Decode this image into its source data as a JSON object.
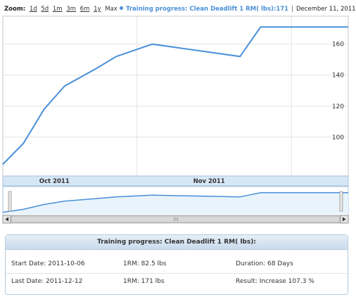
{
  "zoom": {
    "label": "Zoom:",
    "options": [
      "1d",
      "5d",
      "1m",
      "3m",
      "6m",
      "1y"
    ],
    "current": "Max"
  },
  "legend": {
    "series_name": "Training progress: Clean Deadlift 1 RM( lbs):",
    "series_value": "171",
    "date": "December 11, 2011"
  },
  "colors": {
    "line": "#4a90d9",
    "nav_fill": "#e8f3fb",
    "nav_band": "#d6e6f5"
  },
  "chart_data": {
    "type": "line",
    "x_axis": "dates",
    "series": [
      {
        "name": "Training progress: Clean Deadlift 1 RM( lbs):",
        "points": [
          {
            "date": "2011-10-06",
            "value": 82.5
          },
          {
            "date": "2011-10-10",
            "value": 96
          },
          {
            "date": "2011-10-14",
            "value": 118
          },
          {
            "date": "2011-10-18",
            "value": 133
          },
          {
            "date": "2011-10-24",
            "value": 144
          },
          {
            "date": "2011-10-28",
            "value": 152
          },
          {
            "date": "2011-11-04",
            "value": 160
          },
          {
            "date": "2011-11-21",
            "value": 152
          },
          {
            "date": "2011-11-25",
            "value": 171
          },
          {
            "date": "2011-12-12",
            "value": 171
          }
        ]
      }
    ],
    "x_ticks": [
      "Oct 2011",
      "Nov 2011"
    ],
    "y_ticks": [
      100,
      120,
      140,
      160
    ],
    "ylim": [
      75,
      178
    ],
    "grid": true,
    "legend_position": "top"
  },
  "summary": {
    "title": "Training progress: Clean Deadlift 1 RM( lbs):",
    "start_date": "Start Date: 2011-10-06",
    "start_1rm": "1RM: 82.5 lbs",
    "duration": "Duration: 68 Days",
    "last_date": "Last Date: 2011-12-12",
    "last_1rm": "1RM: 171 lbs",
    "result": "Result: Increase 107.3 %"
  }
}
